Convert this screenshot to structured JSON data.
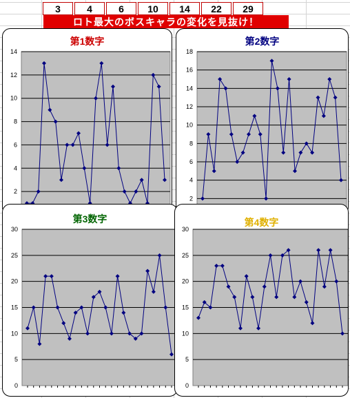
{
  "numbers": [
    "3",
    "4",
    "6",
    "10",
    "14",
    "22",
    "29"
  ],
  "banner": "ロト最大のボスキャラの変化を見抜け！",
  "colors": {
    "banner_bg": "#e00000",
    "plot_bg": "#c0c0c0",
    "line": "#000080"
  },
  "chart_data": [
    {
      "type": "line",
      "title": "第1数字",
      "title_color": "#cc0000",
      "ylim": [
        0,
        14
      ],
      "yticks": [
        2,
        4,
        6,
        8,
        10,
        12,
        14
      ],
      "values": [
        1,
        1,
        2,
        13,
        9,
        8,
        3,
        6,
        6,
        7,
        4,
        1,
        10,
        13,
        6,
        11,
        4,
        2,
        1,
        2,
        3,
        1,
        12,
        11,
        3
      ]
    },
    {
      "type": "line",
      "title": "第2数字",
      "title_color": "#000080",
      "ylim": [
        0,
        18
      ],
      "yticks": [
        2,
        4,
        6,
        8,
        10,
        12,
        14,
        16,
        18
      ],
      "values": [
        2,
        9,
        5,
        15,
        14,
        9,
        6,
        7,
        9,
        11,
        9,
        2,
        17,
        14,
        7,
        15,
        5,
        7,
        8,
        7,
        13,
        11,
        15,
        13,
        4
      ]
    },
    {
      "type": "line",
      "title": "第3数字",
      "title_color": "#006400",
      "ylim": [
        0,
        30
      ],
      "yticks": [
        0,
        5,
        10,
        15,
        20,
        25,
        30
      ],
      "values": [
        11,
        15,
        8,
        21,
        21,
        15,
        12,
        9,
        14,
        15,
        10,
        17,
        18,
        15,
        10,
        21,
        14,
        10,
        9,
        10,
        22,
        18,
        25,
        15,
        6
      ]
    },
    {
      "type": "line",
      "title": "第4数字",
      "title_color": "#e0b000",
      "ylim": [
        0,
        30
      ],
      "yticks": [
        0,
        5,
        10,
        15,
        20,
        25,
        30
      ],
      "values": [
        13,
        16,
        15,
        23,
        23,
        19,
        17,
        11,
        21,
        17,
        11,
        19,
        25,
        17,
        25,
        26,
        17,
        20,
        16,
        12,
        26,
        19,
        26,
        20,
        10
      ]
    }
  ]
}
